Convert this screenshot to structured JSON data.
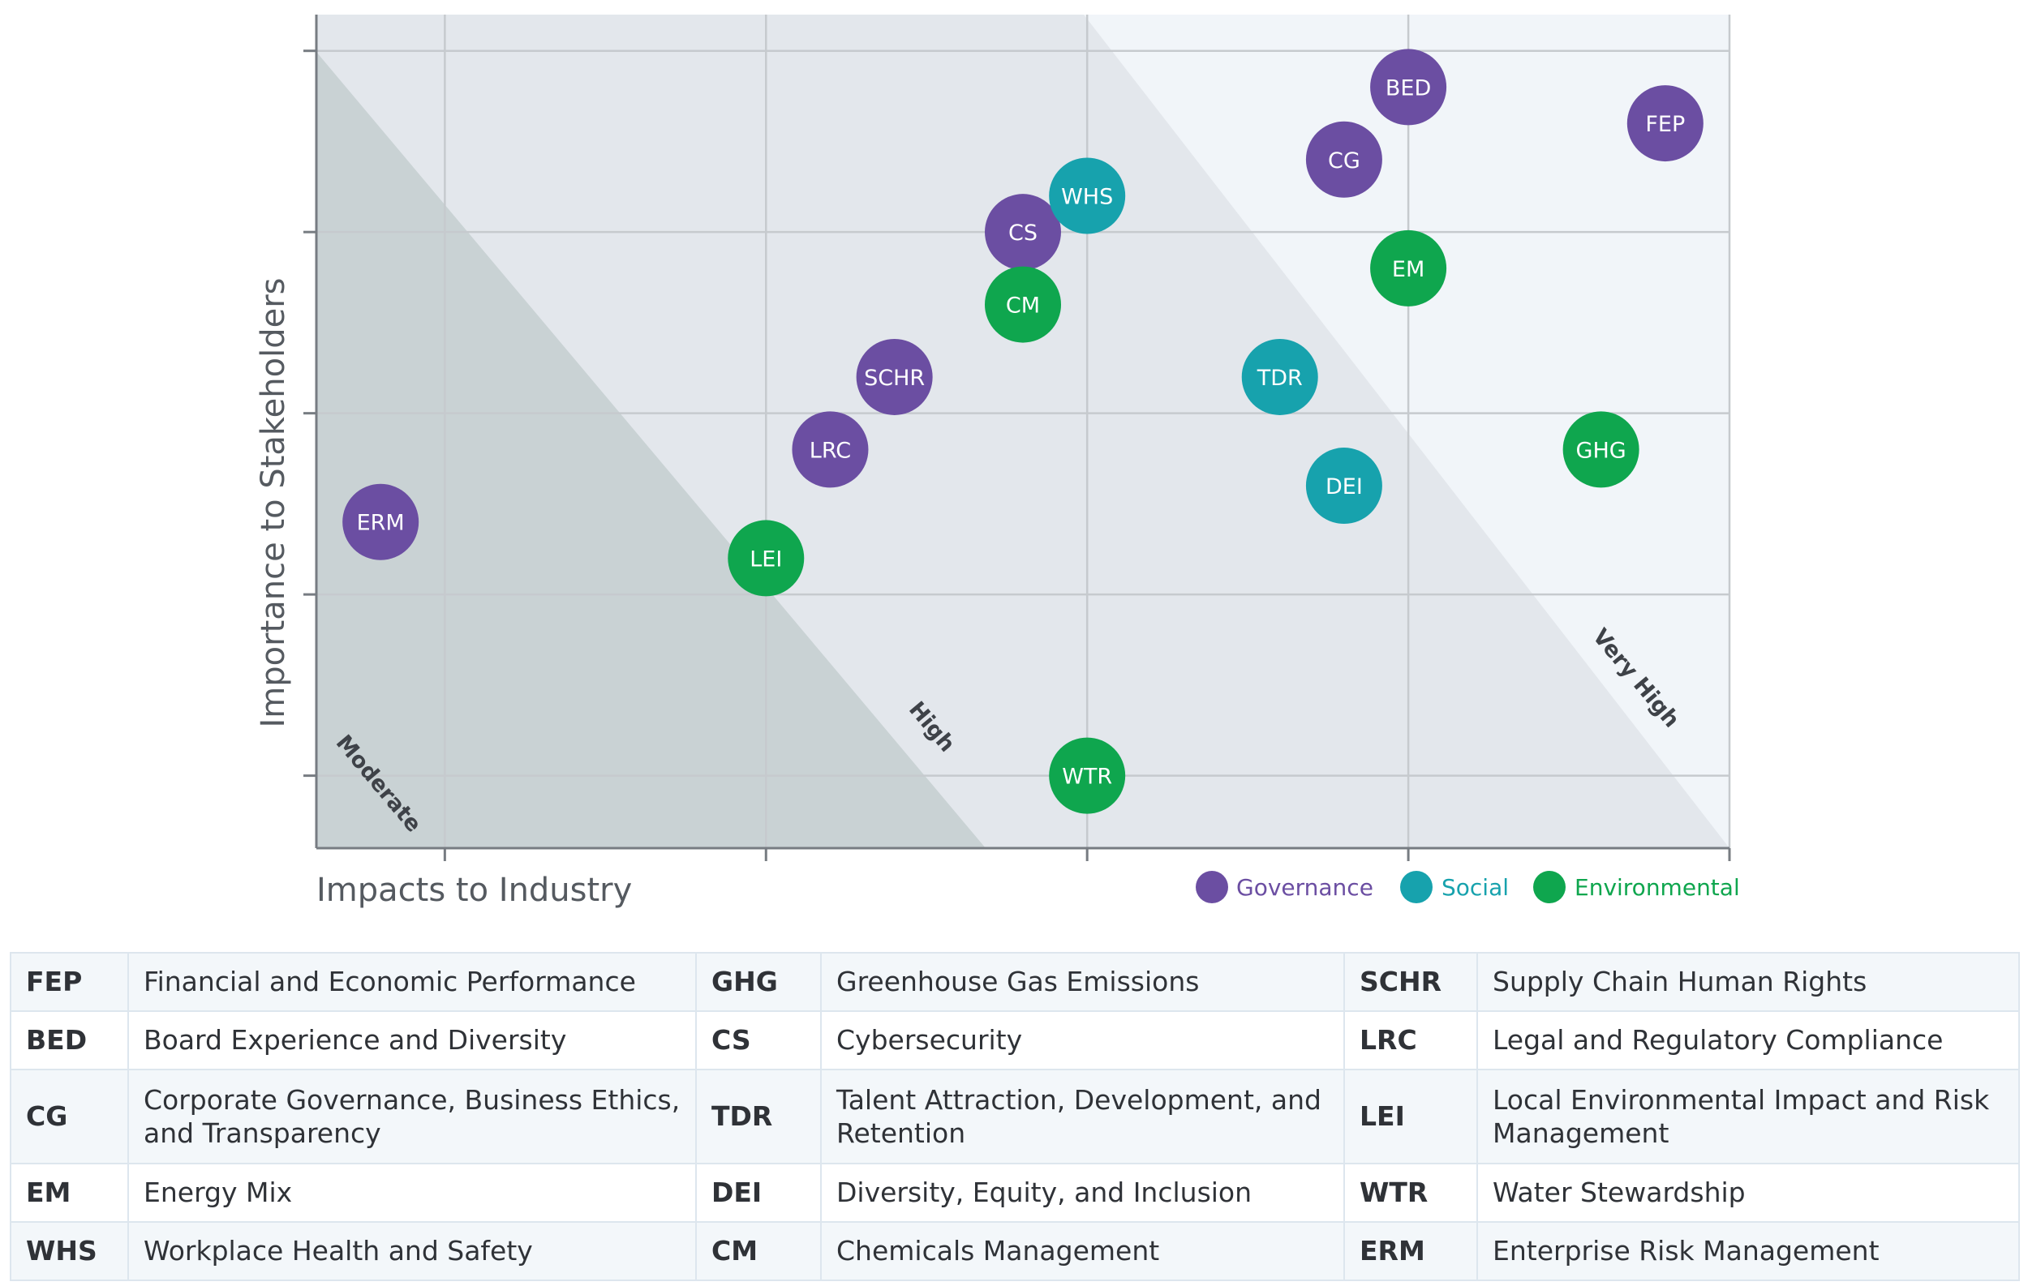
{
  "chart_data": {
    "type": "scatter",
    "xlabel": "Impacts to Industry",
    "ylabel": "Importance to Stakeholders",
    "xlim": [
      0,
      4.4
    ],
    "ylim": [
      0,
      4.6
    ],
    "grid": true,
    "zones": [
      "Moderate",
      "High",
      "Very High"
    ],
    "legend_position": "bottom-right",
    "series": [
      {
        "name": "Governance",
        "color": "#6b4ea2",
        "points": [
          {
            "label": "BED",
            "x": 3.4,
            "y": 4.2
          },
          {
            "label": "FEP",
            "x": 4.2,
            "y": 4.0
          },
          {
            "label": "CG",
            "x": 3.2,
            "y": 3.8
          },
          {
            "label": "CS",
            "x": 2.2,
            "y": 3.4
          },
          {
            "label": "SCHR",
            "x": 1.8,
            "y": 2.6
          },
          {
            "label": "LRC",
            "x": 1.6,
            "y": 2.2
          },
          {
            "label": "ERM",
            "x": 0.2,
            "y": 1.8
          }
        ]
      },
      {
        "name": "Social",
        "color": "#17a2ad",
        "points": [
          {
            "label": "WHS",
            "x": 2.4,
            "y": 3.6
          },
          {
            "label": "TDR",
            "x": 3.0,
            "y": 2.6
          },
          {
            "label": "DEI",
            "x": 3.2,
            "y": 2.0
          }
        ]
      },
      {
        "name": "Environmental",
        "color": "#0fa64e",
        "points": [
          {
            "label": "EM",
            "x": 3.4,
            "y": 3.2
          },
          {
            "label": "CM",
            "x": 2.2,
            "y": 3.0
          },
          {
            "label": "GHG",
            "x": 4.0,
            "y": 2.2
          },
          {
            "label": "LEI",
            "x": 1.4,
            "y": 1.6
          },
          {
            "label": "WTR",
            "x": 2.4,
            "y": 0.4
          }
        ]
      }
    ]
  },
  "legend": {
    "items": [
      {
        "label": "Governance",
        "color": "#6b4ea2"
      },
      {
        "label": "Social",
        "color": "#17a2ad"
      },
      {
        "label": "Environmental",
        "color": "#0fa64e"
      }
    ]
  },
  "definitions": {
    "rows": [
      [
        {
          "abbr": "FEP",
          "name": "Financial and Economic Performance"
        },
        {
          "abbr": "GHG",
          "name": "Greenhouse Gas Emissions"
        },
        {
          "abbr": "SCHR",
          "name": "Supply Chain Human Rights"
        }
      ],
      [
        {
          "abbr": "BED",
          "name": "Board Experience and Diversity"
        },
        {
          "abbr": "CS",
          "name": "Cybersecurity"
        },
        {
          "abbr": "LRC",
          "name": "Legal and Regulatory Compliance"
        }
      ],
      [
        {
          "abbr": "CG",
          "name": "Corporate Governance, Business Ethics, and Transparency"
        },
        {
          "abbr": "TDR",
          "name": "Talent Attraction, Development, and Retention"
        },
        {
          "abbr": "LEI",
          "name": "Local Environmental Impact and Risk Management"
        }
      ],
      [
        {
          "abbr": "EM",
          "name": "Energy Mix"
        },
        {
          "abbr": "DEI",
          "name": "Diversity, Equity, and Inclusion"
        },
        {
          "abbr": "WTR",
          "name": "Water Stewardship"
        }
      ],
      [
        {
          "abbr": "WHS",
          "name": "Workplace Health and Safety"
        },
        {
          "abbr": "CM",
          "name": "Chemicals Management"
        },
        {
          "abbr": "ERM",
          "name": "Enterprise Risk Management"
        }
      ]
    ]
  }
}
